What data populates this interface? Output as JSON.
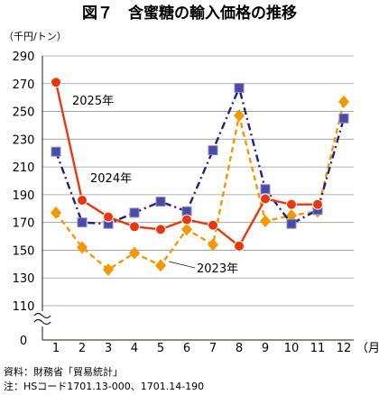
{
  "chart_data": {
    "type": "line",
    "title": "図７　含蜜糖の輸入価格の推移",
    "ylabel": "（千円/トン）",
    "xlabel": "（月）",
    "categories": [
      "1",
      "2",
      "3",
      "4",
      "5",
      "6",
      "7",
      "8",
      "9",
      "10",
      "11",
      "12"
    ],
    "y_ticks": [
      "290",
      "270",
      "250",
      "230",
      "210",
      "190",
      "170",
      "150",
      "130",
      "110",
      "0"
    ],
    "ylim": [
      110,
      290
    ],
    "axis_break": true,
    "grid": "horizontal",
    "series": [
      {
        "name": "2025年",
        "color": "#e8380d",
        "marker": "circle",
        "line": "solid",
        "values": [
          271,
          186,
          174,
          167,
          165,
          172,
          168,
          153,
          187,
          183,
          183,
          null
        ]
      },
      {
        "name": "2024年",
        "color": "#1d2088",
        "marker": "square",
        "line": "dashdot",
        "values": [
          221,
          170,
          169,
          177,
          185,
          178,
          222,
          267,
          194,
          169,
          179,
          245
        ]
      },
      {
        "name": "2023年",
        "color": "#f39800",
        "marker": "diamond",
        "line": "dashed",
        "values": [
          177,
          152,
          136,
          148,
          139,
          165,
          154,
          247,
          171,
          175,
          178,
          257
        ]
      }
    ]
  },
  "footnotes": {
    "source": "資料：財務省「貿易統計」",
    "note": "注：HSコード1701.13-000、1701.14-190"
  }
}
